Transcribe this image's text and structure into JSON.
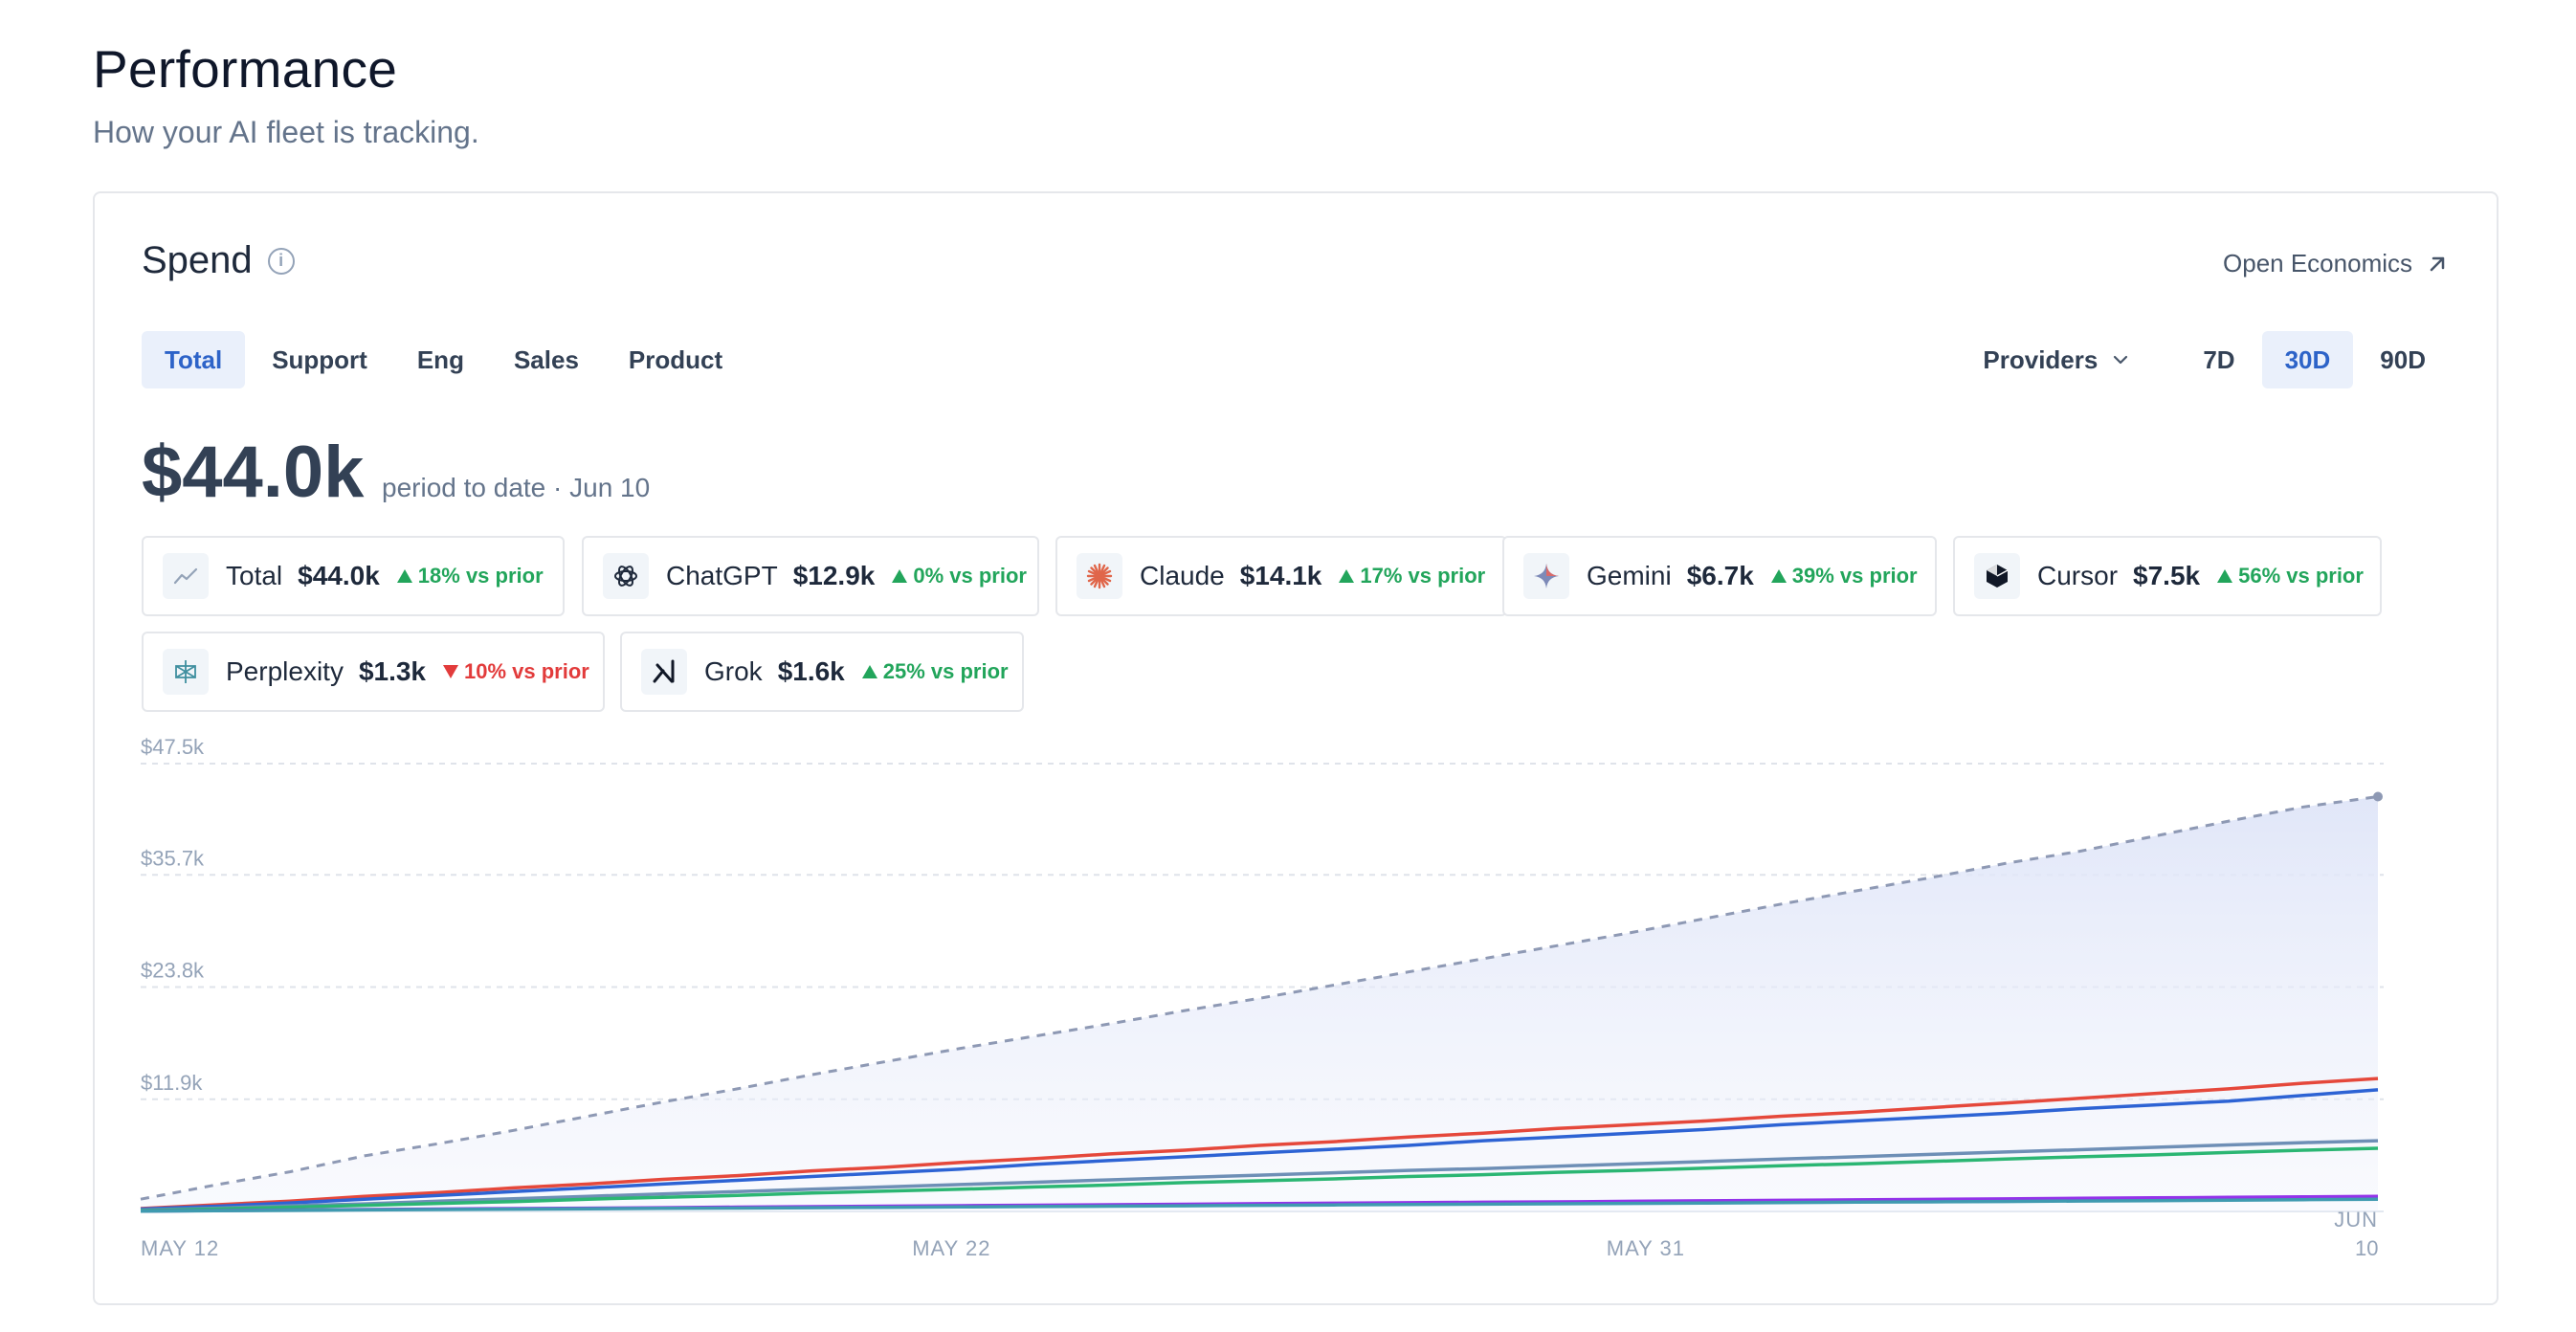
{
  "header": {
    "title": "Performance",
    "subtitle": "How your AI fleet is tracking."
  },
  "card": {
    "title": "Spend",
    "open_link": "Open Economics",
    "tabs": [
      {
        "label": "Total",
        "active": true
      },
      {
        "label": "Support",
        "active": false
      },
      {
        "label": "Eng",
        "active": false
      },
      {
        "label": "Sales",
        "active": false
      },
      {
        "label": "Product",
        "active": false
      }
    ],
    "providers_label": "Providers",
    "ranges": [
      {
        "label": "7D",
        "active": false
      },
      {
        "label": "30D",
        "active": true
      },
      {
        "label": "90D",
        "active": false
      }
    ],
    "total_value": "$44.0k",
    "total_caption": "period to date · Jun 10",
    "chips": [
      {
        "name": "Total",
        "value": "$44.0k",
        "delta": "18% vs prior",
        "direction": "up",
        "icon": "trend-line-icon"
      },
      {
        "name": "ChatGPT",
        "value": "$12.9k",
        "delta": "0% vs prior",
        "direction": "up",
        "icon": "chatgpt-logo-icon"
      },
      {
        "name": "Claude",
        "value": "$14.1k",
        "delta": "17% vs prior",
        "direction": "up",
        "icon": "claude-logo-icon"
      },
      {
        "name": "Gemini",
        "value": "$6.7k",
        "delta": "39% vs prior",
        "direction": "up",
        "icon": "gemini-logo-icon"
      },
      {
        "name": "Cursor",
        "value": "$7.5k",
        "delta": "56% vs prior",
        "direction": "up",
        "icon": "cursor-logo-icon"
      },
      {
        "name": "Perplexity",
        "value": "$1.3k",
        "delta": "10% vs prior",
        "direction": "down",
        "icon": "perplexity-logo-icon"
      },
      {
        "name": "Grok",
        "value": "$1.6k",
        "delta": "25% vs prior",
        "direction": "up",
        "icon": "grok-logo-icon"
      }
    ],
    "colors": {
      "accent": "#2d63c8",
      "positive": "#22a55b",
      "negative": "#e23b3b"
    }
  },
  "chart_data": {
    "type": "line",
    "x_tick_labels": [
      "MAY 12",
      "MAY 22",
      "MAY 31",
      "JUN 10"
    ],
    "y_tick_labels": [
      "$47.5k",
      "$35.7k",
      "$23.8k",
      "$11.9k"
    ],
    "y_ticks": [
      47500,
      35700,
      23800,
      11900
    ],
    "ylim": [
      0,
      47500
    ],
    "x_range_days": [
      0,
      29
    ],
    "grid": true,
    "series": [
      {
        "name": "Total",
        "color": "#8e99b4",
        "dashed": true,
        "area": true,
        "values": [
          1300,
          2800,
          4200,
          5900,
          7200,
          8600,
          10100,
          11600,
          13000,
          14500,
          15900,
          17300,
          18600,
          19900,
          21300,
          22600,
          24000,
          25400,
          26800,
          28200,
          29600,
          31100,
          32600,
          34000,
          35400,
          36900,
          38200,
          39800,
          41400,
          42900,
          44000
        ]
      },
      {
        "name": "Claude",
        "color": "#e5483b",
        "values": [
          300,
          700,
          1100,
          1600,
          2000,
          2500,
          2900,
          3400,
          3800,
          4300,
          4700,
          5200,
          5600,
          6100,
          6500,
          7000,
          7400,
          7900,
          8300,
          8800,
          9200,
          9600,
          10100,
          10500,
          11000,
          11500,
          12000,
          12500,
          13000,
          13600,
          14100
        ]
      },
      {
        "name": "ChatGPT",
        "color": "#2d63d4",
        "values": [
          250,
          550,
          900,
          1300,
          1700,
          2100,
          2500,
          2900,
          3300,
          3700,
          4100,
          4500,
          5000,
          5400,
          5800,
          6200,
          6600,
          7000,
          7500,
          7900,
          8300,
          8700,
          9200,
          9600,
          10000,
          10400,
          10900,
          11300,
          11700,
          12300,
          12900
        ]
      },
      {
        "name": "Cursor",
        "color": "#6e8fb6",
        "values": [
          150,
          350,
          600,
          800,
          1100,
          1350,
          1600,
          1850,
          2100,
          2350,
          2600,
          2850,
          3100,
          3350,
          3600,
          3850,
          4100,
          4350,
          4550,
          4800,
          5050,
          5300,
          5550,
          5800,
          6050,
          6300,
          6550,
          6800,
          7050,
          7300,
          7500
        ]
      },
      {
        "name": "Gemini",
        "color": "#2bb673",
        "values": [
          100,
          250,
          450,
          650,
          850,
          1050,
          1300,
          1500,
          1700,
          1950,
          2150,
          2350,
          2600,
          2800,
          3050,
          3250,
          3450,
          3700,
          3900,
          4150,
          4350,
          4600,
          4850,
          5050,
          5300,
          5550,
          5800,
          6000,
          6250,
          6500,
          6700
        ]
      },
      {
        "name": "Grok",
        "color": "#9333ea",
        "values": [
          40,
          90,
          140,
          200,
          250,
          300,
          350,
          400,
          460,
          510,
          560,
          610,
          660,
          710,
          760,
          820,
          870,
          920,
          970,
          1020,
          1080,
          1130,
          1180,
          1230,
          1280,
          1330,
          1390,
          1440,
          1490,
          1540,
          1600
        ]
      },
      {
        "name": "Perplexity",
        "color": "#3f9ab0",
        "values": [
          30,
          70,
          110,
          160,
          200,
          240,
          280,
          320,
          360,
          400,
          440,
          480,
          520,
          560,
          600,
          650,
          690,
          730,
          770,
          810,
          850,
          890,
          930,
          980,
          1020,
          1060,
          1110,
          1150,
          1200,
          1250,
          1300
        ]
      }
    ]
  }
}
